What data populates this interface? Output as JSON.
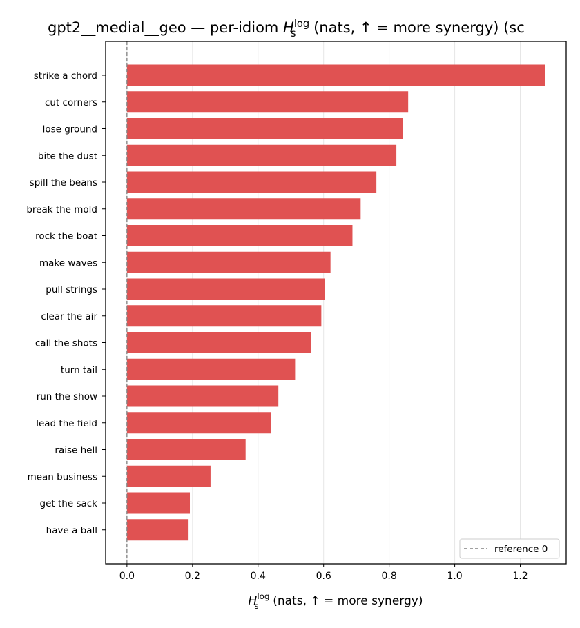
{
  "chart_data": {
    "type": "bar",
    "orientation": "horizontal",
    "title": {
      "prefix": "gpt2__medial__geo — per-idiom ",
      "symbol": "H",
      "superscript": "log",
      "subscript": "s",
      "suffix": " (nats, ↑ = more synergy) (sc"
    },
    "xlabel": {
      "symbol": "H",
      "superscript": "log",
      "subscript": "s",
      "suffix": " (nats, ↑ = more synergy)"
    },
    "ylabel": "",
    "categories": [
      "strike a chord",
      "cut corners",
      "lose ground",
      "bite the dust",
      "spill the beans",
      "break the mold",
      "rock the boat",
      "make waves",
      "pull strings",
      "clear the air",
      "call the shots",
      "turn tail",
      "run the show",
      "lead the field",
      "raise hell",
      "mean business",
      "get the sack",
      "have a ball"
    ],
    "values": [
      1.276,
      0.858,
      0.841,
      0.822,
      0.761,
      0.713,
      0.688,
      0.621,
      0.603,
      0.593,
      0.561,
      0.513,
      0.462,
      0.439,
      0.362,
      0.255,
      0.192,
      0.188
    ],
    "xlim": [
      -0.065,
      1.34
    ],
    "xticks": [
      0.0,
      0.2,
      0.4,
      0.6,
      0.8,
      1.0,
      1.2
    ],
    "xtick_labels": [
      "0.0",
      "0.2",
      "0.4",
      "0.6",
      "0.8",
      "1.0",
      "1.2"
    ],
    "bar_color": "#e05252",
    "reference_line": {
      "x": 0,
      "style": "dashed",
      "color": "#808080"
    },
    "grid": "vertical",
    "legend": {
      "position": "bottom-right",
      "entries": [
        "reference 0"
      ]
    }
  }
}
